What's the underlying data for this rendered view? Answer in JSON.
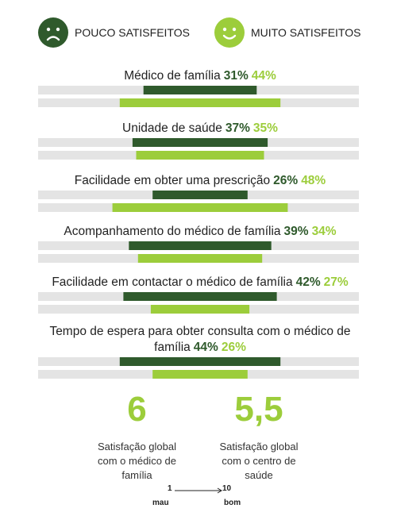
{
  "legend": {
    "poor_label": "POUCO SATISFEITOS",
    "very_label": "MUITO SATISFEITOS",
    "poor_icon": "sad-face-icon",
    "very_icon": "happy-face-icon"
  },
  "colors": {
    "poor": "#2f5a2c",
    "very": "#9ccd3b",
    "track": "#e4e4e4"
  },
  "chart_data": {
    "type": "bar",
    "categories": [
      "Médico de família",
      "Unidade de saúde",
      "Facilidade em obter uma prescrição",
      "Acompanhamento do médico de família",
      "Facilidade em contactar o médico de família",
      "Tempo de espera para obter consulta com o médico de família"
    ],
    "series": [
      {
        "name": "POUCO SATISFEITOS",
        "values": [
          31,
          37,
          26,
          39,
          42,
          44
        ]
      },
      {
        "name": "MUITO SATISFEITOS",
        "values": [
          44,
          35,
          48,
          34,
          27,
          26
        ]
      }
    ],
    "value_labels": {
      "poor": [
        "31%",
        "37%",
        "26%",
        "39%",
        "42%",
        "44%"
      ],
      "very": [
        "44%",
        "35%",
        "48%",
        "34%",
        "27%",
        "26%"
      ]
    },
    "ylim": [
      0,
      100
    ]
  },
  "scores": [
    {
      "value": "6",
      "caption_lines": [
        "Satisfação global",
        "com o médico de",
        "família"
      ]
    },
    {
      "value": "5,5",
      "caption_lines": [
        "Satisfação global",
        "com o centro de",
        "saúde"
      ]
    }
  ],
  "scale": {
    "min": "1",
    "max": "10",
    "min_label": "mau",
    "max_label": "bom"
  }
}
